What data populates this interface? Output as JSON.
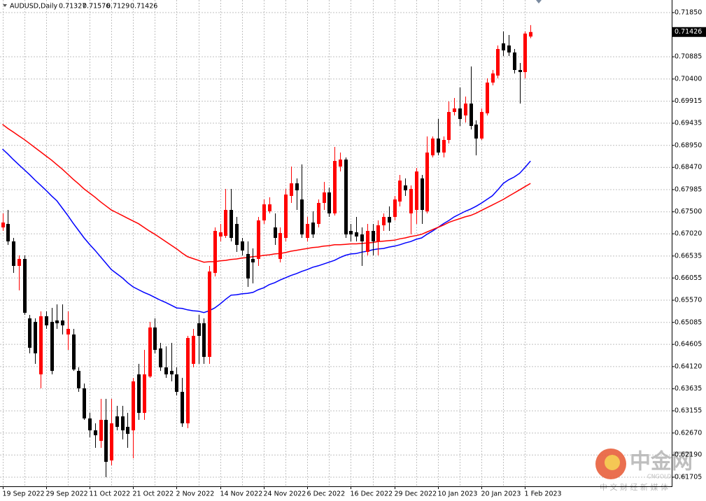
{
  "chart_data": {
    "type": "candlestick",
    "title": "AUDUSD,Daily",
    "categories": [
      "19 Sep 2022",
      null,
      null,
      null,
      null,
      null,
      null,
      null,
      "29 Sep 2022",
      null,
      null,
      null,
      null,
      null,
      null,
      null,
      "11 Oct 2022",
      null,
      null,
      null,
      null,
      null,
      null,
      null,
      "21 Oct 2022",
      null,
      null,
      null,
      null,
      null,
      null,
      null,
      "2 Nov 2022",
      null,
      null,
      null,
      null,
      null,
      null,
      null,
      "14 Nov 2022",
      null,
      null,
      null,
      null,
      null,
      null,
      null,
      "24 Nov 2022",
      null,
      null,
      null,
      null,
      null,
      null,
      null,
      "6 Dec 2022",
      null,
      null,
      null,
      null,
      null,
      null,
      null,
      "16 Dec 2022",
      null,
      null,
      null,
      null,
      null,
      null,
      null,
      "29 Dec 2022",
      null,
      null,
      null,
      null,
      null,
      null,
      null,
      "10 Jan 2023",
      null,
      null,
      null,
      null,
      null,
      null,
      null,
      "20 Jan 2023",
      null,
      null,
      null,
      null,
      null,
      null,
      null,
      "1 Feb 2023",
      null
    ],
    "open": [
      0.67159,
      0.67235,
      0.66854,
      0.66319,
      0.66471,
      0.65173,
      0.65097,
      0.6395,
      0.65219,
      0.65097,
      0.65127,
      0.65127,
      0.64821,
      0.64821,
      0.64026,
      0.63645,
      0.62988,
      0.62728,
      0.62499,
      0.62957,
      0.62071,
      0.63033,
      0.63033,
      0.62804,
      0.62728,
      0.6395,
      0.6311,
      0.63904,
      0.64974,
      0.64516,
      0.64103,
      0.64026,
      0.6395,
      0.63568,
      0.62881,
      0.6418,
      0.65066,
      0.65066,
      0.64332,
      0.66166,
      0.66961,
      0.66976,
      0.67541,
      0.67235,
      0.66854,
      0.66579,
      0.66471,
      0.66471,
      0.67312,
      0.6751,
      0.67159,
      0.66471,
      0.6693,
      0.67847,
      0.68122,
      0.6777,
      0.6693,
      0.67266,
      0.67235,
      0.67694,
      0.67923,
      0.67465,
      0.68488,
      0.68641,
      0.67083,
      0.67052,
      0.67006,
      0.66625,
      0.67083,
      0.66854,
      0.67205,
      0.67388,
      0.67388,
      0.67724,
      0.68076,
      0.67465,
      0.67541,
      0.68229,
      0.6751,
      0.68733,
      0.691,
      0.68794,
      0.69069,
      0.6968,
      0.69757,
      0.69604,
      0.69864,
      0.69405,
      0.691,
      0.6965,
      0.70322,
      0.70475,
      0.71178,
      0.71132,
      0.70979,
      0.70597,
      0.70551,
      0.71327
    ],
    "high": [
      0.67465,
      0.67541,
      0.6693,
      0.66548,
      0.66548,
      0.65249,
      0.65173,
      0.65326,
      0.65326,
      0.65403,
      0.65478,
      0.65478,
      0.65326,
      0.64944,
      0.64103,
      0.63751,
      0.6311,
      0.62881,
      0.63415,
      0.63415,
      0.63415,
      0.63263,
      0.63263,
      0.6311,
      0.63874,
      0.6418,
      0.64485,
      0.65097,
      0.65173,
      0.64638,
      0.64562,
      0.64638,
      0.64103,
      0.63874,
      0.64791,
      0.64944,
      0.65249,
      0.65173,
      0.66319,
      0.67159,
      0.67235,
      0.67999,
      0.67999,
      0.67388,
      0.6693,
      0.66854,
      0.66701,
      0.67388,
      0.6777,
      0.67816,
      0.67465,
      0.67159,
      0.67999,
      0.68488,
      0.68229,
      0.68534,
      0.67388,
      0.6751,
      0.6777,
      0.68152,
      0.6803,
      0.68916,
      0.68794,
      0.68687,
      0.67235,
      0.67388,
      0.67159,
      0.67235,
      0.67235,
      0.67312,
      0.67465,
      0.67617,
      0.67847,
      0.68305,
      0.68229,
      0.68076,
      0.68458,
      0.68305,
      0.69145,
      0.69145,
      0.69527,
      0.69145,
      0.69909,
      0.69986,
      0.70215,
      0.70016,
      0.70673,
      0.69497,
      0.69757,
      0.70414,
      0.70597,
      0.71132,
      0.71437,
      0.71361,
      0.71055,
      0.7075,
      0.71437,
      0.71576
    ],
    "low": [
      0.67083,
      0.66777,
      0.66166,
      0.65784,
      0.65249,
      0.64409,
      0.6418,
      0.63645,
      0.64944,
      0.6395,
      0.64944,
      0.64821,
      0.64485,
      0.64026,
      0.63568,
      0.62957,
      0.62575,
      0.62346,
      0.62346,
      0.61704,
      0.61964,
      0.62728,
      0.62529,
      0.62346,
      0.62117,
      0.62957,
      0.62957,
      0.63874,
      0.64409,
      0.64026,
      0.63874,
      0.63797,
      0.63492,
      0.62804,
      0.62774,
      0.64103,
      0.6418,
      0.6418,
      0.6418,
      0.6609,
      0.66854,
      0.6693,
      0.66854,
      0.66625,
      0.66548,
      0.6586,
      0.65937,
      0.66319,
      0.67235,
      0.67465,
      0.66777,
      0.66395,
      0.66854,
      0.67694,
      0.67541,
      0.6693,
      0.66854,
      0.6693,
      0.67159,
      0.67541,
      0.67388,
      0.67419,
      0.68381,
      0.6693,
      0.66854,
      0.66854,
      0.66319,
      0.66548,
      0.66548,
      0.66548,
      0.67083,
      0.67083,
      0.67312,
      0.67617,
      0.67847,
      0.67006,
      0.67235,
      0.67235,
      0.67465,
      0.68687,
      0.68733,
      0.68687,
      0.68993,
      0.69604,
      0.69375,
      0.69451,
      0.69298,
      0.68733,
      0.69069,
      0.69604,
      0.70261,
      0.70414,
      0.70903,
      0.70903,
      0.70521,
      0.69864,
      0.70414,
      0.7129
    ],
    "close": [
      0.67266,
      0.66854,
      0.66319,
      0.66471,
      0.65295,
      0.64531,
      0.64409,
      0.65219,
      0.6502,
      0.64026,
      0.65066,
      0.6502,
      0.64944,
      0.64057,
      0.63645,
      0.62988,
      0.62728,
      0.62621,
      0.62957,
      0.6204,
      0.62881,
      0.62804,
      0.62728,
      0.62651,
      0.63797,
      0.6311,
      0.6395,
      0.64974,
      0.64485,
      0.64103,
      0.6395,
      0.6395,
      0.63568,
      0.62881,
      0.64745,
      0.64791,
      0.64791,
      0.64332,
      0.66197,
      0.67083,
      0.67052,
      0.67541,
      0.6693,
      0.66777,
      0.66655,
      0.66044,
      0.66395,
      0.67312,
      0.67663,
      0.67663,
      0.6693,
      0.67037,
      0.67877,
      0.68122,
      0.67969,
      0.67006,
      0.67235,
      0.67006,
      0.67694,
      0.67923,
      0.67465,
      0.68611,
      0.68641,
      0.67006,
      0.67006,
      0.66961,
      0.66854,
      0.67083,
      0.66854,
      0.67205,
      0.67388,
      0.67266,
      0.6777,
      0.68183,
      0.67969,
      0.67999,
      0.68381,
      0.67541,
      0.68794,
      0.691,
      0.68794,
      0.69069,
      0.6968,
      0.69757,
      0.69527,
      0.69864,
      0.69375,
      0.691,
      0.6968,
      0.70322,
      0.70521,
      0.71055,
      0.71025,
      0.70979,
      0.70597,
      0.70551,
      0.71392,
      0.71426
    ],
    "up_color": "#ff0000",
    "down_color": "#000000",
    "lines": [
      {
        "color": "#0000ff",
        "values": [
          0.6887,
          0.6876,
          0.6864,
          0.6853,
          0.6842,
          0.6831,
          0.6819,
          0.6808,
          0.6797,
          0.6785,
          0.6774,
          0.6758,
          0.6742,
          0.6725,
          0.6709,
          0.6693,
          0.6679,
          0.6666,
          0.6652,
          0.6638,
          0.6624,
          0.6615,
          0.6606,
          0.6595,
          0.6586,
          0.658,
          0.6574,
          0.6569,
          0.6563,
          0.6557,
          0.6552,
          0.6546,
          0.654,
          0.6539,
          0.6536,
          0.6534,
          0.6533,
          0.653,
          0.6534,
          0.654,
          0.6549,
          0.6559,
          0.6568,
          0.6569,
          0.6571,
          0.6572,
          0.6574,
          0.658,
          0.6584,
          0.6591,
          0.6595,
          0.6601,
          0.6606,
          0.6611,
          0.6615,
          0.662,
          0.6624,
          0.6629,
          0.6632,
          0.6636,
          0.664,
          0.6644,
          0.665,
          0.6655,
          0.6658,
          0.6659,
          0.6662,
          0.6664,
          0.6667,
          0.6669,
          0.667,
          0.6673,
          0.6675,
          0.6678,
          0.6682,
          0.6685,
          0.669,
          0.6693,
          0.6701,
          0.6708,
          0.6716,
          0.6724,
          0.6731,
          0.6739,
          0.6745,
          0.6751,
          0.6756,
          0.6762,
          0.6769,
          0.6777,
          0.6785,
          0.6798,
          0.6812,
          0.682,
          0.6826,
          0.6834,
          0.6847,
          0.6861
        ]
      },
      {
        "color": "#ff0000",
        "values": [
          0.6941,
          0.6932,
          0.6924,
          0.6916,
          0.6908,
          0.6899,
          0.689,
          0.6881,
          0.6872,
          0.6863,
          0.6853,
          0.6843,
          0.6832,
          0.6821,
          0.6811,
          0.68,
          0.6791,
          0.6782,
          0.6772,
          0.6763,
          0.6754,
          0.6748,
          0.6742,
          0.6736,
          0.673,
          0.6724,
          0.6716,
          0.6708,
          0.6701,
          0.6693,
          0.6685,
          0.6677,
          0.6669,
          0.666,
          0.6652,
          0.6648,
          0.6644,
          0.664,
          0.6641,
          0.6641,
          0.6643,
          0.6644,
          0.6646,
          0.6647,
          0.6649,
          0.665,
          0.6652,
          0.6653,
          0.6655,
          0.6656,
          0.6658,
          0.6659,
          0.6661,
          0.6664,
          0.6666,
          0.6668,
          0.667,
          0.6672,
          0.6673,
          0.6675,
          0.6676,
          0.6678,
          0.6678,
          0.6679,
          0.668,
          0.668,
          0.6681,
          0.6682,
          0.6683,
          0.6685,
          0.6686,
          0.6687,
          0.6688,
          0.6691,
          0.6693,
          0.6696,
          0.6698,
          0.6701,
          0.6706,
          0.6711,
          0.6716,
          0.6721,
          0.6727,
          0.6731,
          0.6735,
          0.6739,
          0.6742,
          0.6747,
          0.6753,
          0.6759,
          0.6765,
          0.6771,
          0.6777,
          0.6784,
          0.6791,
          0.6798,
          0.6805,
          0.6812
        ]
      }
    ],
    "ylim": [
      0.61506,
      0.72125
    ],
    "yticks": [
      {
        "value": 0.7185,
        "label": "0.71850"
      },
      0.70885,
      {
        "value": 0.704,
        "label": "0.70400"
      },
      0.69915,
      0.69435,
      {
        "value": 0.6895,
        "label": "0.68950"
      },
      {
        "value": 0.6847,
        "label": "0.68470"
      },
      0.67985,
      {
        "value": 0.675,
        "label": "0.67500"
      },
      {
        "value": 0.6702,
        "label": "0.67020"
      },
      0.66535,
      0.66055,
      {
        "value": 0.6557,
        "label": "0.65570"
      },
      0.65085,
      0.64605,
      {
        "value": 0.6412,
        "label": "0.64120"
      },
      0.63635,
      0.63155,
      {
        "value": 0.6267,
        "label": "0.62670"
      },
      {
        "value": 0.6219,
        "label": "0.62190"
      },
      0.61705
    ],
    "grid": true
  },
  "watermark": {
    "brand": "中金网",
    "site": "CNGOLD.COM",
    "tagline": "中 文 财 经 新 媒 体"
  }
}
